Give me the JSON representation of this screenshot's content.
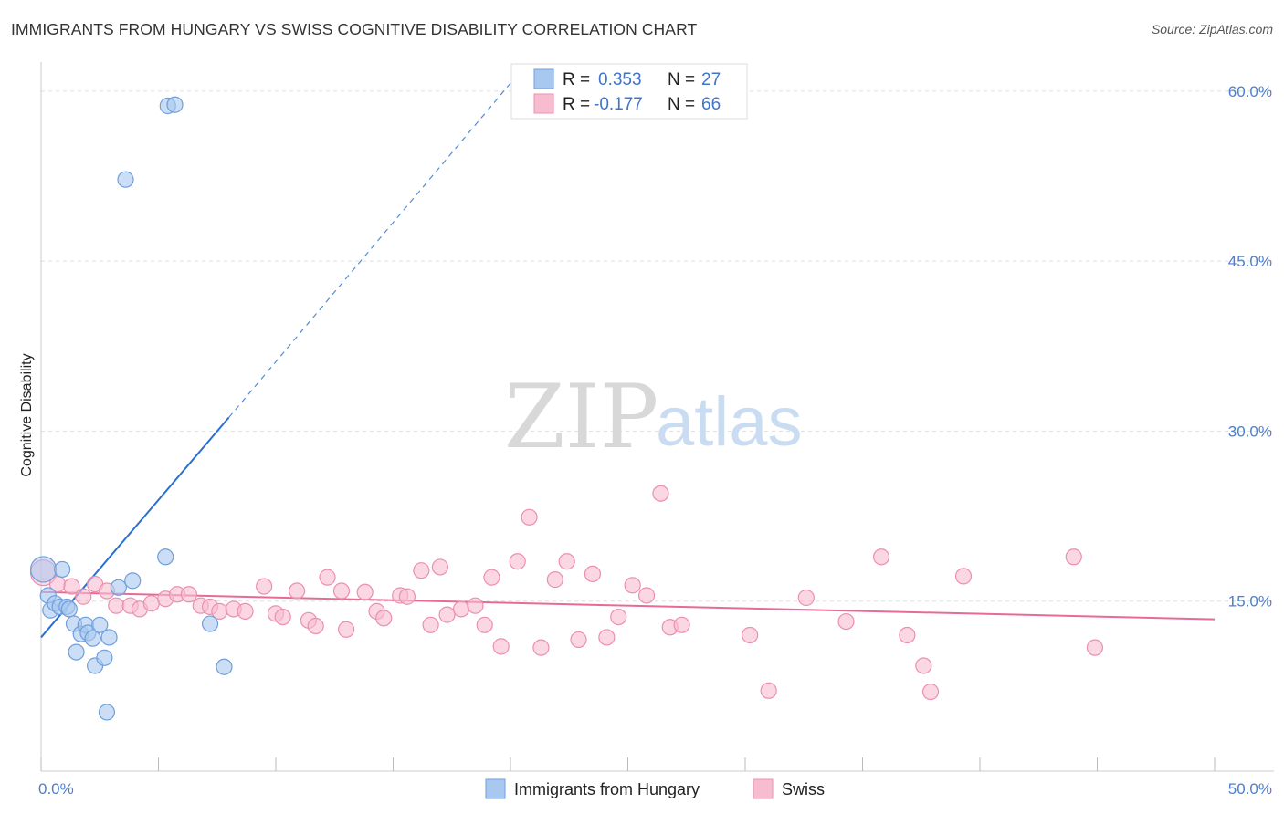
{
  "header": {
    "title": "IMMIGRANTS FROM HUNGARY VS SWISS COGNITIVE DISABILITY CORRELATION CHART",
    "source": "Source: ZipAtlas.com"
  },
  "watermark": {
    "part1": "ZIP",
    "part2": "atlas"
  },
  "colors": {
    "hungary_fill": "#a9c8f0",
    "hungary_stroke": "#6e9fdc",
    "hungary_line": "#2a6fd0",
    "swiss_fill": "#f8bcd0",
    "swiss_stroke": "#ec8fae",
    "swiss_line": "#e76b98",
    "grid": "#dddddd",
    "tick_text": "#4a7fd4"
  },
  "stats_box": {
    "hungary": {
      "r_label": "R =",
      "r_value": "0.353",
      "n_label": "N =",
      "n_value": "27"
    },
    "swiss": {
      "r_label": "R =",
      "r_value": "-0.177",
      "n_label": "N =",
      "n_value": "66"
    }
  },
  "chart_data": {
    "type": "scatter",
    "title": "IMMIGRANTS FROM HUNGARY VS SWISS COGNITIVE DISABILITY CORRELATION CHART",
    "xlabel": "",
    "ylabel": "Cognitive Disability",
    "xlim": [
      0,
      50
    ],
    "ylim": [
      0,
      62
    ],
    "x_tick_labels": [
      "0.0%",
      "50.0%"
    ],
    "y_ticks": [
      15,
      30,
      45,
      60
    ],
    "y_tick_labels": [
      "15.0%",
      "30.0%",
      "45.0%",
      "60.0%"
    ],
    "grid": true,
    "legend": [
      "Immigrants from Hungary",
      "Swiss"
    ],
    "legend_position": "bottom",
    "series": [
      {
        "name": "Immigrants from Hungary",
        "points": [
          [
            0.1,
            17.8
          ],
          [
            0.3,
            15.5
          ],
          [
            0.4,
            14.2
          ],
          [
            0.6,
            14.8
          ],
          [
            0.8,
            14.5
          ],
          [
            0.9,
            17.8
          ],
          [
            1.1,
            14.5
          ],
          [
            1.2,
            14.3
          ],
          [
            1.4,
            13.0
          ],
          [
            1.5,
            10.5
          ],
          [
            1.7,
            12.1
          ],
          [
            1.9,
            12.9
          ],
          [
            2.0,
            12.2
          ],
          [
            2.2,
            11.7
          ],
          [
            2.3,
            9.3
          ],
          [
            2.5,
            12.9
          ],
          [
            2.7,
            10.0
          ],
          [
            2.8,
            5.2
          ],
          [
            2.9,
            11.8
          ],
          [
            3.3,
            16.2
          ],
          [
            3.6,
            52.2
          ],
          [
            3.9,
            16.8
          ],
          [
            5.3,
            18.9
          ],
          [
            5.4,
            58.7
          ],
          [
            5.7,
            58.8
          ],
          [
            7.2,
            13.0
          ],
          [
            7.8,
            9.2
          ]
        ],
        "trend": {
          "x0": 0,
          "y0": 11.8,
          "x1": 8.0,
          "y1": 31.2,
          "dashed_to_x": 20.0,
          "dashed_to_y": 60.7
        }
      },
      {
        "name": "Swiss",
        "points": [
          [
            0.1,
            17.5
          ],
          [
            0.7,
            16.5
          ],
          [
            1.3,
            16.3
          ],
          [
            1.8,
            15.4
          ],
          [
            2.3,
            16.5
          ],
          [
            2.8,
            15.9
          ],
          [
            3.2,
            14.6
          ],
          [
            3.8,
            14.6
          ],
          [
            4.2,
            14.3
          ],
          [
            4.7,
            14.8
          ],
          [
            5.3,
            15.2
          ],
          [
            5.8,
            15.6
          ],
          [
            6.3,
            15.6
          ],
          [
            6.8,
            14.6
          ],
          [
            7.2,
            14.5
          ],
          [
            7.6,
            14.1
          ],
          [
            8.2,
            14.3
          ],
          [
            8.7,
            14.1
          ],
          [
            9.5,
            16.3
          ],
          [
            10.0,
            13.9
          ],
          [
            10.3,
            13.6
          ],
          [
            10.9,
            15.9
          ],
          [
            11.4,
            13.3
          ],
          [
            11.7,
            12.8
          ],
          [
            12.2,
            17.1
          ],
          [
            12.8,
            15.9
          ],
          [
            13.0,
            12.5
          ],
          [
            13.8,
            15.8
          ],
          [
            14.3,
            14.1
          ],
          [
            14.6,
            13.5
          ],
          [
            15.3,
            15.5
          ],
          [
            15.6,
            15.4
          ],
          [
            16.2,
            17.7
          ],
          [
            16.6,
            12.9
          ],
          [
            17.0,
            18.0
          ],
          [
            17.3,
            13.8
          ],
          [
            17.9,
            14.3
          ],
          [
            18.5,
            14.6
          ],
          [
            18.9,
            12.9
          ],
          [
            19.2,
            17.1
          ],
          [
            19.6,
            11.0
          ],
          [
            20.3,
            18.5
          ],
          [
            20.8,
            22.4
          ],
          [
            21.3,
            10.9
          ],
          [
            21.9,
            16.9
          ],
          [
            22.4,
            18.5
          ],
          [
            22.9,
            11.6
          ],
          [
            23.5,
            17.4
          ],
          [
            24.1,
            11.8
          ],
          [
            24.6,
            13.6
          ],
          [
            25.2,
            16.4
          ],
          [
            25.8,
            15.5
          ],
          [
            26.4,
            24.5
          ],
          [
            26.8,
            12.7
          ],
          [
            27.3,
            12.9
          ],
          [
            30.2,
            12.0
          ],
          [
            31.0,
            7.1
          ],
          [
            32.6,
            15.3
          ],
          [
            34.3,
            13.2
          ],
          [
            35.8,
            18.9
          ],
          [
            36.9,
            12.0
          ],
          [
            37.6,
            9.3
          ],
          [
            37.9,
            7.0
          ],
          [
            39.3,
            17.2
          ],
          [
            44.0,
            18.9
          ],
          [
            44.9,
            10.9
          ]
        ],
        "trend": {
          "x0": 0,
          "y0": 15.8,
          "x1": 50,
          "y1": 13.4
        }
      }
    ]
  }
}
